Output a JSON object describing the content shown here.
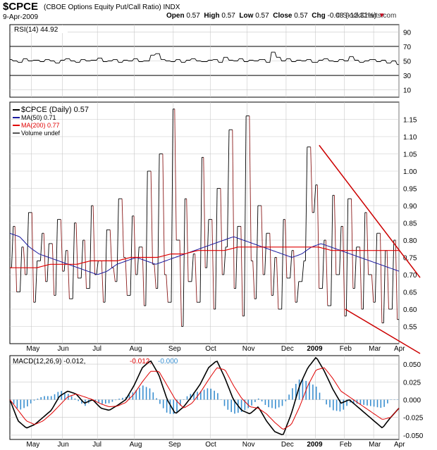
{
  "header": {
    "symbol": "$CPCE",
    "description": "(CBOE Options Equity Put/Call Ratio)",
    "exchange": "INDX",
    "date": "9-Apr-2009",
    "open_label": "Open",
    "open": "0.57",
    "high_label": "High",
    "high": "0.57",
    "low_label": "Low",
    "low": "0.57",
    "close_label": "Close",
    "close": "0.57",
    "chg_label": "Chg",
    "chg": "-0.08 (-12.31%)",
    "chg_arrow": "▼",
    "watermark": "© StockCharts.com"
  },
  "colors": {
    "price": "#000000",
    "price_down": "#8b1a1a",
    "ma50": "#1a1aa0",
    "ma200": "#e00000",
    "trendline": "#cc0000",
    "macd": "#000000",
    "signal": "#e00000",
    "histogram": "#3a8fd0",
    "grid": "#c8c8c8",
    "panel_border": "#000000"
  },
  "chart_data": [
    {
      "type": "line",
      "title": "RSI(14) 44.92",
      "legend": [
        "RSI(14) 44.92"
      ],
      "ylim": [
        0,
        100
      ],
      "yticks": [
        "90",
        "70",
        "50",
        "30",
        "10"
      ],
      "reference_lines": [
        70,
        30
      ],
      "rsi_anchor": [
        52,
        50,
        48,
        53,
        50,
        51,
        49,
        52,
        50,
        47,
        51,
        53,
        50,
        48,
        52,
        50,
        51,
        54,
        49,
        50,
        52,
        48,
        51,
        50,
        53,
        49,
        50,
        58,
        60,
        52,
        50,
        49,
        52,
        48,
        51,
        53,
        50,
        49,
        51,
        52,
        48,
        55,
        51,
        50,
        53,
        49,
        51,
        50,
        52,
        48,
        62,
        55,
        50,
        53,
        49,
        51,
        50,
        52,
        48,
        51,
        53,
        50,
        49,
        52,
        50,
        56,
        51,
        48,
        50,
        52,
        49,
        51,
        47,
        50,
        45
      ]
    },
    {
      "type": "line",
      "title": "$CPCE (Daily) 0.57",
      "legend": [
        "$CPCE (Daily) 0.57",
        "MA(50) 0.71",
        "MA(200) 0.77",
        "Volume undef"
      ],
      "ylim": [
        0.5,
        1.2
      ],
      "yticks": [
        "1.15",
        "1.10",
        "1.05",
        "1.00",
        "0.95",
        "0.90",
        "0.85",
        "0.80",
        "0.75",
        "0.70",
        "0.65",
        "0.60",
        "0.55"
      ],
      "x_labels": [
        "May",
        "Jun",
        "Jul",
        "Aug",
        "Sep",
        "Oct",
        "Nov",
        "Dec",
        "2009",
        "Feb",
        "Mar",
        "Apr"
      ],
      "x_label_positions": [
        0.055,
        0.135,
        0.225,
        0.32,
        0.42,
        0.515,
        0.61,
        0.71,
        0.785,
        0.86,
        0.935,
        1.0
      ],
      "price_anchor": [
        0.72,
        0.84,
        0.65,
        0.78,
        0.7,
        0.88,
        0.62,
        0.74,
        0.82,
        0.68,
        0.79,
        0.64,
        0.86,
        0.71,
        0.77,
        0.63,
        0.85,
        0.69,
        0.8,
        0.66,
        0.9,
        0.7,
        0.74,
        0.62,
        0.83,
        0.72,
        0.68,
        0.92,
        0.75,
        0.64,
        0.87,
        0.7,
        0.78,
        0.61,
        1.0,
        0.73,
        0.66,
        1.05,
        0.7,
        0.62,
        1.18,
        0.8,
        0.55,
        0.92,
        0.68,
        0.76,
        0.62,
        1.04,
        0.72,
        0.86,
        0.6,
        0.95,
        0.7,
        0.78,
        1.12,
        0.66,
        0.84,
        0.58,
        1.16,
        0.74,
        0.63,
        0.9,
        0.7,
        0.82,
        0.64,
        0.75,
        0.6,
        0.86,
        0.69,
        0.77,
        0.62,
        0.68,
        0.74,
        1.07,
        0.88,
        0.96,
        0.66,
        0.8,
        0.61,
        0.93,
        0.7,
        0.84,
        0.58,
        0.92,
        0.66,
        0.78,
        0.6,
        0.88,
        0.7,
        0.62,
        0.82,
        0.56,
        0.77,
        0.6,
        0.8,
        0.57
      ],
      "ma50_anchor": [
        0.82,
        0.81,
        0.78,
        0.76,
        0.75,
        0.74,
        0.73,
        0.72,
        0.71,
        0.7,
        0.71,
        0.73,
        0.74,
        0.75,
        0.74,
        0.73,
        0.74,
        0.75,
        0.76,
        0.77,
        0.78,
        0.79,
        0.8,
        0.81,
        0.8,
        0.79,
        0.78,
        0.77,
        0.76,
        0.75,
        0.76,
        0.78,
        0.79,
        0.78,
        0.77,
        0.76,
        0.75,
        0.74,
        0.73,
        0.72,
        0.71
      ],
      "ma200_anchor": [
        0.72,
        0.72,
        0.72,
        0.73,
        0.73,
        0.73,
        0.74,
        0.74,
        0.74,
        0.75,
        0.75,
        0.75,
        0.76,
        0.76,
        0.77,
        0.77,
        0.77,
        0.78,
        0.78,
        0.78,
        0.78,
        0.78,
        0.78,
        0.78,
        0.77,
        0.77,
        0.77,
        0.77,
        0.77,
        0.77
      ],
      "trendlines": [
        {
          "from": {
            "x": 0.795,
            "y": 1.075
          },
          "to": {
            "x": 1.0,
            "y": 0.72
          }
        },
        {
          "from": {
            "x": 0.862,
            "y": 0.6
          },
          "to": {
            "x": 1.0,
            "y": 0.5
          }
        }
      ]
    },
    {
      "type": "line",
      "title": "MACD(12,26,9) -0.012, -0.012, -0.000",
      "legend": [
        "MACD(12,26,9) -0.012, ",
        "-0.012, ",
        "-0.000"
      ],
      "ylim": [
        -0.056,
        0.062
      ],
      "yticks": [
        "0.050",
        "0.025",
        "0.000",
        "-0.025",
        "-0.050"
      ],
      "x_labels": [
        "May",
        "Jun",
        "Jul",
        "Aug",
        "Sep",
        "Oct",
        "Nov",
        "Dec",
        "2009",
        "Feb",
        "Mar",
        "Apr"
      ],
      "macd_anchor": [
        0.0,
        -0.03,
        -0.04,
        -0.035,
        -0.025,
        -0.015,
        0.005,
        0.012,
        0.008,
        -0.005,
        0.0,
        -0.012,
        -0.015,
        -0.008,
        0.0,
        0.02,
        0.045,
        0.055,
        0.035,
        0.0,
        -0.02,
        -0.01,
        0.005,
        0.022,
        0.045,
        0.055,
        0.03,
        0.0,
        -0.015,
        -0.02,
        -0.01,
        -0.03,
        -0.045,
        -0.05,
        -0.02,
        0.02,
        0.045,
        0.06,
        0.04,
        0.015,
        -0.005,
        0.0,
        -0.01,
        -0.02,
        -0.03,
        -0.04,
        -0.025,
        -0.012
      ],
      "signal_anchor": [
        0.0,
        -0.015,
        -0.03,
        -0.035,
        -0.03,
        -0.02,
        -0.008,
        0.004,
        0.008,
        0.004,
        0.0,
        -0.006,
        -0.01,
        -0.009,
        -0.004,
        0.008,
        0.025,
        0.04,
        0.04,
        0.02,
        0.0,
        -0.012,
        -0.005,
        0.01,
        0.028,
        0.045,
        0.042,
        0.02,
        0.002,
        -0.01,
        -0.012,
        -0.02,
        -0.032,
        -0.042,
        -0.035,
        -0.01,
        0.02,
        0.042,
        0.045,
        0.03,
        0.012,
        0.004,
        -0.004,
        -0.012,
        -0.02,
        -0.028,
        -0.025,
        -0.012
      ]
    }
  ]
}
